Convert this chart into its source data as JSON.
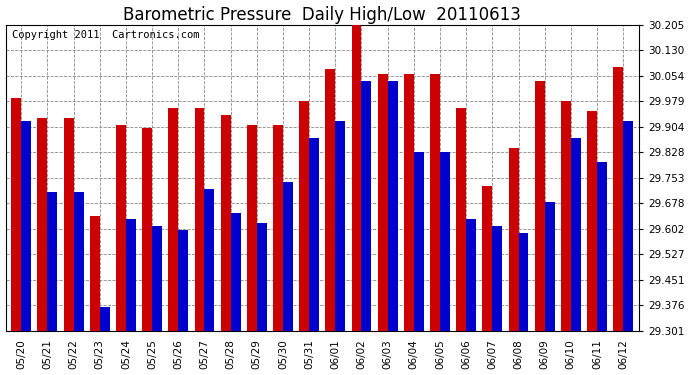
{
  "title": "Barometric Pressure  Daily High/Low  20110613",
  "copyright": "Copyright 2011  Cartronics.com",
  "dates": [
    "05/20",
    "05/21",
    "05/22",
    "05/23",
    "05/24",
    "05/25",
    "05/26",
    "05/27",
    "05/28",
    "05/29",
    "05/30",
    "05/31",
    "06/01",
    "06/02",
    "06/03",
    "06/04",
    "06/05",
    "06/06",
    "06/07",
    "06/08",
    "06/09",
    "06/10",
    "06/11",
    "06/12"
  ],
  "highs": [
    29.99,
    29.93,
    29.93,
    29.64,
    29.91,
    29.9,
    29.96,
    29.96,
    29.94,
    29.91,
    29.91,
    29.98,
    30.075,
    30.215,
    30.06,
    30.06,
    30.06,
    29.96,
    29.73,
    29.84,
    30.04,
    29.98,
    29.95,
    30.08
  ],
  "lows": [
    29.92,
    29.71,
    29.71,
    29.37,
    29.63,
    29.61,
    29.6,
    29.72,
    29.65,
    29.62,
    29.74,
    29.87,
    29.92,
    30.04,
    30.04,
    29.83,
    29.83,
    29.63,
    29.61,
    29.59,
    29.68,
    29.87,
    29.8,
    29.92
  ],
  "ylim_min": 29.301,
  "ylim_max": 30.205,
  "yticks": [
    29.301,
    29.376,
    29.451,
    29.527,
    29.602,
    29.678,
    29.753,
    29.828,
    29.904,
    29.979,
    30.054,
    30.13,
    30.205
  ],
  "bar_width": 0.38,
  "high_color": "#cc0000",
  "low_color": "#0000cc",
  "bg_color": "#ffffff",
  "grid_color": "#888888",
  "title_fontsize": 12,
  "copyright_fontsize": 7.5,
  "tick_fontsize": 7.5
}
